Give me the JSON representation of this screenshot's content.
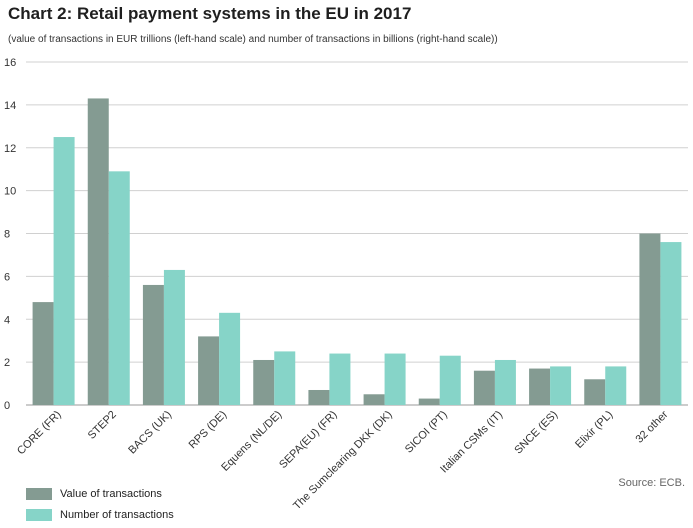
{
  "title": "Chart 2: Retail payment systems in the EU in 2017",
  "subtitle": "(value of transactions in EUR trillions (left-hand scale) and number of transactions in billions (right-hand scale))",
  "source": "Source: ECB.",
  "colors": {
    "value": "#849b92",
    "number": "#86d4c8",
    "grid": "#d0d0d0",
    "axis": "#999999"
  },
  "chart_data": {
    "type": "bar",
    "categories": [
      "CORE (FR)",
      "STEP2",
      "BACS (UK)",
      "RPS (DE)",
      "Equens (NL/DE)",
      "SEPA(EU) (FR)",
      "The Sumclearing DKK (DK)",
      "SICOI (PT)",
      "Italian CSMs (IT)",
      "SNCE (ES)",
      "Elixir (PL)",
      "32 other"
    ],
    "series": [
      {
        "name": "Value of transactions",
        "values": [
          4.8,
          14.3,
          5.6,
          3.2,
          2.1,
          0.7,
          0.5,
          0.3,
          1.6,
          1.7,
          1.2,
          8.0
        ]
      },
      {
        "name": "Number of transactions",
        "values": [
          12.5,
          10.9,
          6.3,
          4.3,
          2.5,
          2.4,
          2.4,
          2.3,
          2.1,
          1.8,
          1.8,
          7.6
        ]
      }
    ],
    "yticks": [
      0,
      2,
      4,
      6,
      8,
      10,
      12,
      14,
      16
    ],
    "ylim": [
      0,
      16
    ],
    "grid": true,
    "legend_position": "bottom-left"
  }
}
